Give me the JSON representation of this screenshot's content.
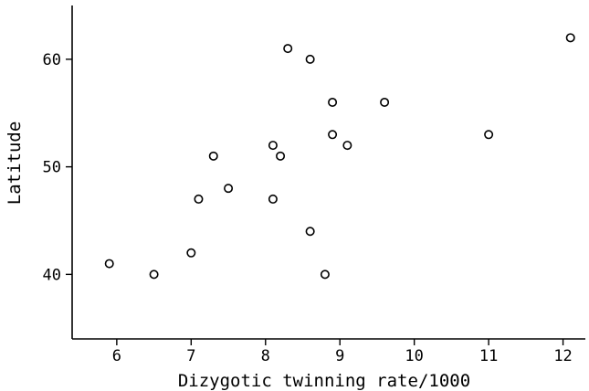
{
  "chart_data": {
    "type": "scatter",
    "title": "",
    "xlabel": "Dizygotic twinning rate/1000",
    "ylabel": "Latitude",
    "xlim": [
      5.4,
      12.3
    ],
    "ylim": [
      34,
      65
    ],
    "x_ticks": [
      6,
      7,
      8,
      9,
      10,
      11,
      12
    ],
    "y_ticks": [
      40,
      50,
      60
    ],
    "grid": false,
    "legend": "none",
    "marker": "open-circle",
    "colors": {
      "marker_stroke": "#000000",
      "marker_fill": "#ffffff",
      "axis": "#000000"
    },
    "series": [
      {
        "points": [
          {
            "x": 5.9,
            "y": 41
          },
          {
            "x": 6.5,
            "y": 40
          },
          {
            "x": 7.0,
            "y": 42
          },
          {
            "x": 7.1,
            "y": 47
          },
          {
            "x": 7.3,
            "y": 51
          },
          {
            "x": 7.5,
            "y": 48
          },
          {
            "x": 8.1,
            "y": 52
          },
          {
            "x": 8.1,
            "y": 47
          },
          {
            "x": 8.2,
            "y": 51
          },
          {
            "x": 8.3,
            "y": 61
          },
          {
            "x": 8.6,
            "y": 60
          },
          {
            "x": 8.6,
            "y": 44
          },
          {
            "x": 8.8,
            "y": 40
          },
          {
            "x": 8.9,
            "y": 56
          },
          {
            "x": 8.9,
            "y": 53
          },
          {
            "x": 9.1,
            "y": 52
          },
          {
            "x": 9.6,
            "y": 56
          },
          {
            "x": 11.0,
            "y": 53
          },
          {
            "x": 12.1,
            "y": 62
          }
        ]
      }
    ]
  }
}
